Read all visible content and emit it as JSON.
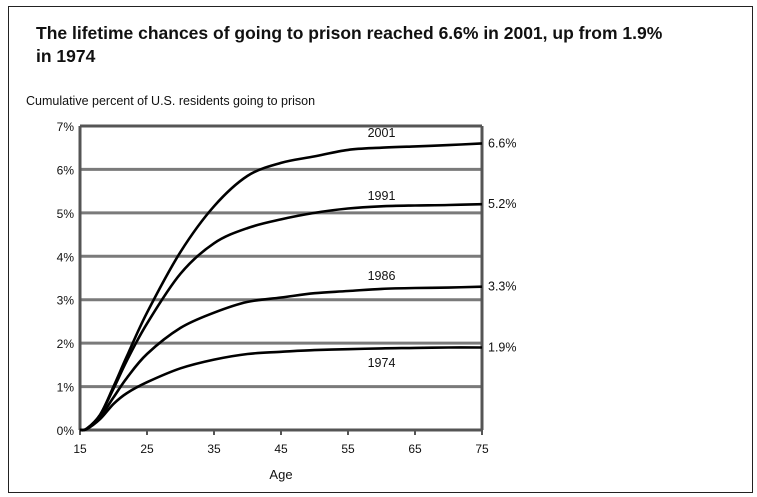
{
  "chart_data": {
    "type": "line",
    "title": "The lifetime chances of going to prison reached 6.6% in 2001, up from 1.9% in 1974",
    "ylabel": "Cumulative percent of U.S. residents going to prison",
    "xlabel": "Age",
    "x_ticks": [
      "15",
      "25",
      "35",
      "45",
      "55",
      "65",
      "75"
    ],
    "y_ticks": [
      "0%",
      "1%",
      "2%",
      "3%",
      "4%",
      "5%",
      "6%",
      "7%"
    ],
    "xlim": [
      15,
      75
    ],
    "ylim": [
      0,
      7
    ],
    "grid": true,
    "series": [
      {
        "name": "2001",
        "end_label": "6.6%",
        "x": [
          15,
          16,
          18,
          20,
          22,
          25,
          30,
          35,
          40,
          45,
          50,
          55,
          60,
          65,
          70,
          75
        ],
        "y": [
          0,
          0.03,
          0.35,
          1.0,
          1.7,
          2.7,
          4.1,
          5.15,
          5.85,
          6.15,
          6.3,
          6.45,
          6.5,
          6.53,
          6.56,
          6.6
        ]
      },
      {
        "name": "1991",
        "end_label": "5.2%",
        "x": [
          15,
          16,
          18,
          20,
          22,
          25,
          30,
          35,
          40,
          45,
          50,
          55,
          60,
          65,
          70,
          75
        ],
        "y": [
          0,
          0.03,
          0.35,
          0.95,
          1.6,
          2.45,
          3.6,
          4.3,
          4.65,
          4.85,
          5.0,
          5.1,
          5.15,
          5.17,
          5.18,
          5.2
        ]
      },
      {
        "name": "1986",
        "end_label": "3.3%",
        "x": [
          15,
          16,
          18,
          20,
          22,
          25,
          30,
          35,
          40,
          45,
          50,
          55,
          60,
          65,
          70,
          75
        ],
        "y": [
          0,
          0.02,
          0.3,
          0.75,
          1.2,
          1.75,
          2.35,
          2.7,
          2.95,
          3.05,
          3.15,
          3.2,
          3.25,
          3.27,
          3.28,
          3.3
        ]
      },
      {
        "name": "1974",
        "end_label": "1.9%",
        "x": [
          15,
          16,
          18,
          20,
          22,
          25,
          30,
          35,
          40,
          45,
          50,
          55,
          60,
          65,
          70,
          75
        ],
        "y": [
          0,
          0.02,
          0.25,
          0.6,
          0.85,
          1.1,
          1.42,
          1.62,
          1.75,
          1.8,
          1.84,
          1.86,
          1.88,
          1.89,
          1.9,
          1.9
        ]
      }
    ],
    "series_labels": [
      {
        "text": "2001",
        "x": 60,
        "y": 6.75
      },
      {
        "text": "1991",
        "x": 60,
        "y": 5.3
      },
      {
        "text": "1986",
        "x": 60,
        "y": 3.45
      },
      {
        "text": "1974",
        "x": 60,
        "y": 1.45
      }
    ]
  },
  "colors": {
    "line": "#000000",
    "grid": "#7a7a7a",
    "axis": "#555555"
  }
}
